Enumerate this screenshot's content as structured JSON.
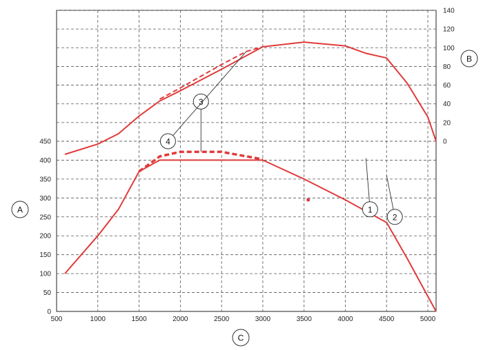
{
  "chart_data": {
    "type": "line",
    "x_axis": {
      "label": "C",
      "range": [
        500,
        5100
      ],
      "ticks": [
        500,
        1000,
        1500,
        2000,
        2500,
        3000,
        3500,
        4000,
        4500,
        5000
      ]
    },
    "left_axis": {
      "label": "A",
      "range": [
        0,
        450
      ],
      "ticks": [
        0,
        50,
        100,
        150,
        200,
        250,
        300,
        350,
        400,
        450
      ]
    },
    "right_axis": {
      "label": "B",
      "range": [
        0,
        140
      ],
      "ticks": [
        0,
        20,
        40,
        60,
        80,
        100,
        120,
        140
      ]
    },
    "grid": true,
    "colors": {
      "series": "#e03a3a",
      "grid": "#555555",
      "axis": "#222222"
    },
    "series": [
      {
        "callout": "1",
        "axis": "right",
        "style": "solid",
        "points": [
          [
            600,
            -14
          ],
          [
            1000,
            -3
          ],
          [
            1250,
            8
          ],
          [
            1500,
            27
          ],
          [
            1750,
            43
          ],
          [
            2000,
            54
          ],
          [
            2500,
            77
          ],
          [
            3000,
            101
          ],
          [
            3500,
            106
          ],
          [
            4000,
            102
          ],
          [
            4250,
            94
          ],
          [
            4500,
            89
          ],
          [
            4750,
            62
          ],
          [
            5000,
            26
          ],
          [
            5100,
            0
          ]
        ]
      },
      {
        "callout": "4",
        "axis": "right",
        "style": "dashed",
        "points": [
          [
            1750,
            45
          ],
          [
            2000,
            57
          ],
          [
            2500,
            82
          ],
          [
            2800,
            96
          ],
          [
            3000,
            101
          ]
        ]
      },
      {
        "callout": "2",
        "axis": "left",
        "style": "solid",
        "points": [
          [
            600,
            100
          ],
          [
            1000,
            200
          ],
          [
            1250,
            270
          ],
          [
            1500,
            370
          ],
          [
            1750,
            400
          ],
          [
            2500,
            400
          ],
          [
            3000,
            400
          ],
          [
            3500,
            350
          ],
          [
            4000,
            295
          ],
          [
            4500,
            235
          ],
          [
            4750,
            140
          ],
          [
            5000,
            40
          ],
          [
            5100,
            0
          ]
        ]
      },
      {
        "callout": "3",
        "axis": "left",
        "style": "dashed",
        "points": [
          [
            1500,
            370
          ],
          [
            1750,
            410
          ],
          [
            2000,
            422
          ],
          [
            2500,
            422
          ],
          [
            3000,
            402
          ]
        ]
      }
    ],
    "annotations": [
      {
        "label": "1",
        "circle_at": [
          4300,
          270
        ],
        "points_to": [
          4250,
          405
        ],
        "axis": "left"
      },
      {
        "label": "2",
        "circle_at": [
          4600,
          250
        ],
        "points_to": [
          4500,
          360
        ],
        "axis": "left"
      },
      {
        "label": "3",
        "circle_at": [
          2250,
          555
        ],
        "points_to": [
          2250,
          422
        ],
        "axis": "left"
      },
      {
        "label": "4",
        "circle_at": [
          1850,
          0
        ],
        "points_to": [
          2800,
          96
        ],
        "axis": "right"
      }
    ],
    "marker": {
      "x": 3550,
      "y": 295,
      "axis": "left"
    }
  }
}
